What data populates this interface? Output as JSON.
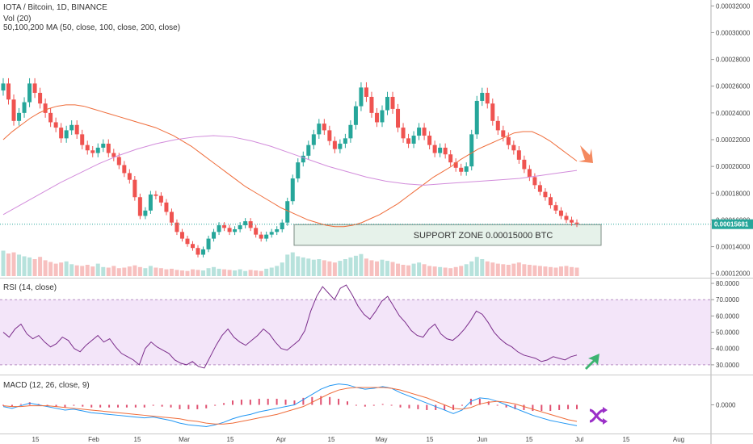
{
  "header": {
    "title": "IOTA / Bitcoin, 1D, BINANCE",
    "vol_label": "Vol (20)",
    "ma_label": "50,100,200 MA (50, close, 100, close, 200, close)",
    "rsi_label": "RSI (14, close)",
    "macd_label": "MACD (12, 26, close, 9)"
  },
  "annotations": {
    "support_zone": "SUPPORT ZONE 0.00015000 BTC",
    "last_price": "0.00015681"
  },
  "colors": {
    "up": "#26a69a",
    "down": "#ef5350",
    "ma_fast": "#ef6c3a",
    "ma_slow": "#d28cdb",
    "rsi_line": "#7b2d8b",
    "rsi_band": "#f3e5f9",
    "macd_line": "#2196f3",
    "signal_line": "#ef6c3a",
    "hist": "#e05070",
    "arrow_down": "#f4895f",
    "arrow_up": "#3cb371",
    "cross_icon": "#9b30c8"
  },
  "icons": {
    "price_arrow": "arrow-down-right-icon",
    "rsi_arrow": "arrow-up-right-icon",
    "macd_cross": "crossover-icon"
  },
  "chart_data": [
    {
      "type": "candlestick",
      "title": "IOTA / Bitcoin, 1D, BINANCE",
      "x_ticks": [
        "15",
        "Feb",
        "15",
        "Mar",
        "15",
        "Apr",
        "15",
        "May",
        "15",
        "Jun",
        "15",
        "Jul",
        "15",
        "Aug"
      ],
      "y_ticks": [
        "0.00032000",
        "0.00030000",
        "0.00028000",
        "0.00026000",
        "0.00024000",
        "0.00022000",
        "0.00020000",
        "0.00018000",
        "0.00016000",
        "0.00014000",
        "0.00012000"
      ],
      "ylim": [
        0.000118,
        0.000322
      ],
      "close": [
        0.000262,
        0.00025,
        0.000234,
        0.00024,
        0.000248,
        0.000262,
        0.000255,
        0.000247,
        0.00024,
        0.000233,
        0.000229,
        0.000221,
        0.000227,
        0.000231,
        0.000224,
        0.000216,
        0.000212,
        0.00021,
        0.000214,
        0.000217,
        0.00021,
        0.000207,
        0.000201,
        0.000195,
        0.00019,
        0.000177,
        0.000163,
        0.000167,
        0.000179,
        0.000178,
        0.000173,
        0.000166,
        0.000158,
        0.000151,
        0.000146,
        0.000142,
        0.000139,
        0.000134,
        0.000138,
        0.000146,
        0.000151,
        0.000156,
        0.000154,
        0.000151,
        0.000153,
        0.000156,
        0.000159,
        0.000154,
        0.000149,
        0.000146,
        0.000149,
        0.000151,
        0.000153,
        0.000158,
        0.000174,
        0.000191,
        0.000203,
        0.000208,
        0.000216,
        0.000224,
        0.000232,
        0.000227,
        0.000219,
        0.000213,
        0.000217,
        0.000221,
        0.000231,
        0.000245,
        0.000259,
        0.000252,
        0.00024,
        0.000233,
        0.000242,
        0.000252,
        0.000243,
        0.000229,
        0.000221,
        0.000217,
        0.000223,
        0.000229,
        0.000223,
        0.000216,
        0.00021,
        0.000214,
        0.000209,
        0.000203,
        0.000199,
        0.000196,
        0.0002,
        0.000224,
        0.000249,
        0.000255,
        0.000247,
        0.000234,
        0.000227,
        0.000222,
        0.000216,
        0.000212,
        0.000205,
        0.000198,
        0.000192,
        0.000186,
        0.000181,
        0.000177,
        0.000171,
        0.000167,
        0.000163,
        0.00016,
        0.000158,
        0.000157
      ],
      "volume_ylim": [
        0,
        100
      ],
      "volume": [
        45,
        40,
        42,
        38,
        35,
        33,
        30,
        34,
        28,
        25,
        22,
        24,
        26,
        21,
        19,
        18,
        20,
        17,
        22,
        16,
        15,
        18,
        14,
        15,
        17,
        19,
        16,
        14,
        18,
        15,
        14,
        12,
        13,
        11,
        10,
        9,
        12,
        11,
        10,
        14,
        16,
        13,
        12,
        11,
        10,
        12,
        9,
        11,
        10,
        9,
        13,
        15,
        18,
        24,
        38,
        42,
        35,
        33,
        31,
        29,
        30,
        28,
        26,
        24,
        27,
        30,
        33,
        36,
        39,
        31,
        28,
        26,
        29,
        27,
        25,
        22,
        20,
        19,
        22,
        24,
        21,
        18,
        17,
        16,
        15,
        14,
        16,
        18,
        21,
        26,
        34,
        30,
        26,
        24,
        22,
        21,
        20,
        22,
        24,
        21,
        20,
        19,
        18,
        17,
        16,
        15,
        17,
        18,
        16,
        15
      ],
      "ma50": [
        0.00022,
        0.000226,
        0.000231,
        0.000236,
        0.00024,
        0.000243,
        0.000245,
        0.000246,
        0.000246,
        0.000245,
        0.000243,
        0.000241,
        0.000239,
        0.000237,
        0.000235,
        0.000233,
        0.000231,
        0.000229,
        0.000226,
        0.000223,
        0.000219,
        0.000215,
        0.00021,
        0.000205,
        0.0002,
        0.000195,
        0.00019,
        0.000185,
        0.000181,
        0.000177,
        0.000173,
        0.000169,
        0.000166,
        0.000163,
        0.00016,
        0.000158,
        0.000156,
        0.000155,
        0.000155,
        0.000156,
        0.000158,
        0.000161,
        0.000164,
        0.000168,
        0.000172,
        0.000177,
        0.000182,
        0.000187,
        0.000192,
        0.000196,
        0.0002,
        0.000205,
        0.000209,
        0.000213,
        0.000216,
        0.000219,
        0.000222,
        0.000225,
        0.000226,
        0.000226,
        0.000223,
        0.000219,
        0.000214,
        0.000209,
        0.000204
      ],
      "ma200": [
        0.000164,
        0.000172,
        0.00018,
        0.000188,
        0.000195,
        0.000202,
        0.000208,
        0.000213,
        0.000217,
        0.00022,
        0.000222,
        0.000223,
        0.000222,
        0.000219,
        0.000215,
        0.00021,
        0.000205,
        0.0002,
        0.000196,
        0.000192,
        0.000189,
        0.000187,
        0.000186,
        0.000187,
        0.000188,
        0.000189,
        0.00019,
        0.000191,
        0.000193,
        0.000195,
        0.000197
      ]
    },
    {
      "type": "line",
      "title": "RSI (14, close)",
      "y_ticks": [
        "80.0000",
        "70.0000",
        "60.0000",
        "50.0000",
        "40.0000",
        "30.0000"
      ],
      "ylim": [
        25,
        82
      ],
      "band": [
        30,
        70
      ],
      "values": [
        50,
        47,
        52,
        55,
        49,
        46,
        48,
        44,
        41,
        43,
        47,
        45,
        40,
        38,
        42,
        45,
        48,
        44,
        46,
        41,
        37,
        35,
        33,
        30,
        40,
        44,
        41,
        39,
        37,
        33,
        31,
        30,
        32,
        29,
        28,
        35,
        42,
        48,
        52,
        47,
        44,
        42,
        45,
        48,
        52,
        49,
        44,
        40,
        39,
        42,
        45,
        51,
        63,
        72,
        78,
        74,
        70,
        77,
        79,
        73,
        66,
        61,
        58,
        63,
        69,
        72,
        66,
        60,
        56,
        51,
        48,
        47,
        52,
        55,
        49,
        46,
        45,
        48,
        52,
        57,
        63,
        61,
        56,
        50,
        46,
        43,
        41,
        38,
        36,
        35,
        34,
        32,
        33,
        35,
        34,
        33,
        35,
        36
      ]
    },
    {
      "type": "line",
      "title": "MACD (12, 26, close, 9)",
      "y_ticks": [
        "0.0000"
      ],
      "ylim": [
        -3.2e-05,
        3.2e-05
      ],
      "macd": [
        -2e-06,
        -4e-06,
        -1e-06,
        2e-06,
        0.0,
        -2e-06,
        -4e-06,
        -6e-06,
        -5e-06,
        -7e-06,
        -9e-06,
        -1e-05,
        -1.1e-05,
        -1.2e-05,
        -1.3e-05,
        -1.4e-05,
        -1.5e-05,
        -1.4e-05,
        -1.6e-05,
        -1.8e-05,
        -2.1e-05,
        -2.3e-05,
        -2.4e-05,
        -2.5e-05,
        -2.3e-05,
        -2e-05,
        -1.6e-05,
        -1.3e-05,
        -1.1e-05,
        -8e-06,
        -6e-06,
        -4e-06,
        -2e-06,
        0.0,
        6e-06,
        1.2e-05,
        1.8e-05,
        2.2e-05,
        2.4e-05,
        2.3e-05,
        2e-05,
        1.8e-05,
        1.9e-05,
        2.1e-05,
        1.9e-05,
        1.4e-05,
        1e-05,
        6e-06,
        2e-06,
        -2e-06,
        -6e-06,
        -1e-05,
        -6e-06,
        4e-06,
        8e-06,
        7e-06,
        4e-06,
        0.0,
        -4e-06,
        -8e-06,
        -1.2e-05,
        -1.5e-05,
        -1.8e-05,
        -2e-05,
        -2.2e-05,
        -2.4e-05
      ],
      "signal": [
        -1e-06,
        -2e-06,
        -2e-06,
        -1e-06,
        -1e-06,
        -1e-06,
        -2e-06,
        -3e-06,
        -4e-06,
        -5e-06,
        -6e-06,
        -7e-06,
        -8e-06,
        -9e-06,
        -1e-05,
        -1.1e-05,
        -1.2e-05,
        -1.3e-05,
        -1.4e-05,
        -1.5e-05,
        -1.6e-05,
        -1.8e-05,
        -1.9e-05,
        -2.1e-05,
        -2.2e-05,
        -2.2e-05,
        -2.1e-05,
        -1.9e-05,
        -1.7e-05,
        -1.5e-05,
        -1.3e-05,
        -1.1e-05,
        -8e-06,
        -5e-06,
        -2e-06,
        3e-06,
        8e-06,
        1.3e-05,
        1.7e-05,
        1.9e-05,
        2e-05,
        2e-05,
        2e-05,
        2e-05,
        1.9e-05,
        1.7e-05,
        1.4e-05,
        1.1e-05,
        8e-06,
        4e-06,
        0.0,
        -4e-06,
        -5e-06,
        -3e-06,
        1e-06,
        3e-06,
        4e-06,
        3e-06,
        1e-06,
        -2e-06,
        -5e-06,
        -8e-06,
        -1.1e-05,
        -1.4e-05,
        -1.7e-05,
        -1.9e-05
      ]
    }
  ]
}
